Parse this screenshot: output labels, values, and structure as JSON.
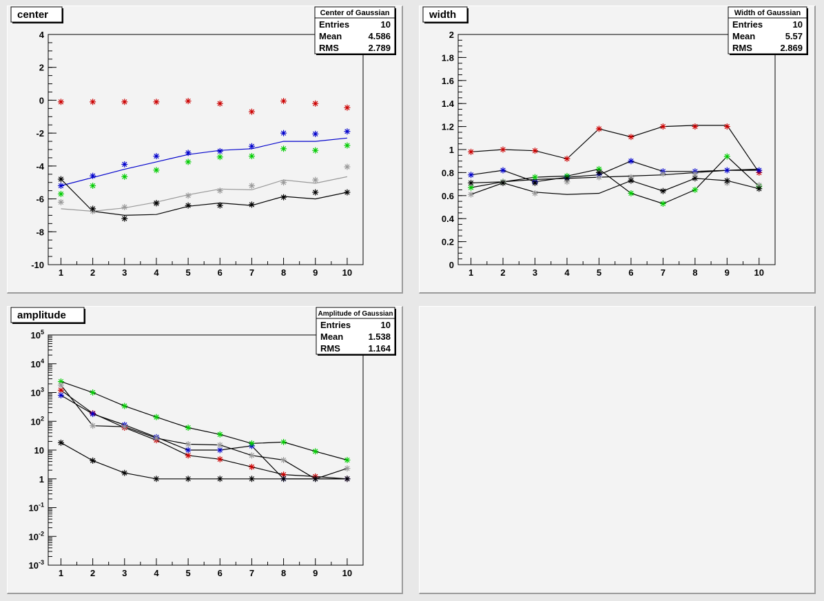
{
  "chart_data": [
    {
      "type": "scatter",
      "title": "center",
      "xlabel": "",
      "ylabel": "",
      "xlim": [
        0.6,
        10.5
      ],
      "ylim": [
        -10,
        4
      ],
      "x_ticks": [
        1,
        2,
        3,
        4,
        5,
        6,
        7,
        8,
        9,
        10
      ],
      "y_ticks": [
        4,
        2,
        0,
        -2,
        -4,
        -6,
        -8,
        -10
      ],
      "y_tick_labels": [
        "4",
        "2",
        "0",
        "-2",
        "-4",
        "-6",
        "-8",
        "-10"
      ],
      "log_y": false,
      "stats": {
        "name": "Center of Gaussian",
        "entries_label": "Entries",
        "entries": "10",
        "mean_label": "Mean",
        "mean": "4.586",
        "rms_label": "RMS",
        "rms": "2.789"
      },
      "series": [
        {
          "color": "#cc0000",
          "markers": [
            -0.1,
            -0.1,
            -0.1,
            -0.1,
            -0.05,
            -0.2,
            -0.7,
            -0.05,
            -0.2,
            -0.45
          ],
          "line": null
        },
        {
          "color": "#0000cc",
          "markers": [
            -5.2,
            -4.6,
            -3.9,
            -3.4,
            -3.2,
            -3.1,
            -2.8,
            -2.0,
            -2.05,
            -1.9
          ],
          "line": [
            -5.2,
            -4.7,
            -4.2,
            -3.75,
            -3.3,
            -3.05,
            -2.95,
            -2.5,
            -2.5,
            -2.3
          ]
        },
        {
          "color": "#00cc00",
          "markers": [
            -5.7,
            -5.2,
            -4.65,
            -4.25,
            -3.75,
            -3.45,
            -3.4,
            -2.95,
            -3.05,
            -2.75
          ],
          "line": null
        },
        {
          "color": "#999999",
          "markers": [
            -6.2,
            -6.75,
            -6.5,
            -6.3,
            -5.8,
            -5.5,
            -5.2,
            -5.0,
            -4.85,
            -4.05
          ],
          "line": [
            -6.6,
            -6.75,
            -6.55,
            -6.2,
            -5.75,
            -5.4,
            -5.45,
            -4.85,
            -5.05,
            -4.65
          ]
        },
        {
          "color": "#000000",
          "markers": [
            -4.8,
            -6.6,
            -7.2,
            -6.25,
            -6.4,
            -6.4,
            -6.35,
            -5.9,
            -5.6,
            -5.6
          ],
          "line": [
            -4.8,
            -6.75,
            -7.0,
            -6.95,
            -6.45,
            -6.25,
            -6.4,
            -5.85,
            -6.0,
            -5.6
          ]
        }
      ]
    },
    {
      "type": "scatter",
      "title": "width",
      "xlabel": "",
      "ylabel": "",
      "xlim": [
        0.6,
        10.5
      ],
      "ylim": [
        0,
        2
      ],
      "x_ticks": [
        1,
        2,
        3,
        4,
        5,
        6,
        7,
        8,
        9,
        10
      ],
      "y_ticks": [
        2,
        1.8,
        1.6,
        1.4,
        1.2,
        1,
        0.8,
        0.6,
        0.4,
        0.2,
        0
      ],
      "y_tick_labels": [
        "2",
        "1.8",
        "1.6",
        "1.4",
        "1.2",
        "1",
        "0.8",
        "0.6",
        "0.4",
        "0.2",
        "0"
      ],
      "log_y": false,
      "stats": {
        "name": "Width of Gaussian",
        "entries_label": "Entries",
        "entries": "10",
        "mean_label": "Mean",
        "mean": "5.57",
        "rms_label": "RMS",
        "rms": "2.869"
      },
      "series": [
        {
          "color": "#cc0000",
          "markers": [
            0.98,
            1.0,
            0.99,
            0.92,
            1.18,
            1.11,
            1.2,
            1.2,
            1.2,
            0.8
          ],
          "line": null
        },
        {
          "color": "#0000cc",
          "markers": [
            0.78,
            0.82,
            0.72,
            0.76,
            0.78,
            0.9,
            0.81,
            0.81,
            0.82,
            0.82
          ],
          "line": null
        },
        {
          "color": "#00cc00",
          "markers": [
            0.67,
            0.72,
            0.76,
            0.77,
            0.83,
            0.62,
            0.53,
            0.65,
            0.94,
            0.68
          ],
          "line": null
        },
        {
          "color": "#999999",
          "markers": [
            0.61,
            0.72,
            0.62,
            0.72,
            0.76,
            0.76,
            0.79,
            0.79,
            0.71,
            0.69
          ],
          "line": null
        },
        {
          "color": "#000000",
          "markers": [
            0.71,
            0.71,
            0.71,
            0.75,
            0.8,
            0.73,
            0.64,
            0.75,
            0.73,
            0.66
          ],
          "line": null
        }
      ],
      "lines": [
        {
          "color": "#000000",
          "values": [
            0.98,
            1.0,
            0.99,
            0.92,
            1.18,
            1.11,
            1.2,
            1.21,
            1.21,
            0.8
          ]
        },
        {
          "color": "#000000",
          "values": [
            0.78,
            0.82,
            0.72,
            0.76,
            0.78,
            0.9,
            0.81,
            0.81,
            0.82,
            0.82
          ]
        },
        {
          "color": "#000000",
          "values": [
            0.67,
            0.72,
            0.76,
            0.77,
            0.83,
            0.62,
            0.53,
            0.65,
            0.94,
            0.68
          ]
        },
        {
          "color": "#000000",
          "values": [
            0.61,
            0.71,
            0.63,
            0.61,
            0.62,
            0.73,
            0.64,
            0.75,
            0.73,
            0.66
          ]
        },
        {
          "color": "#000000",
          "values": [
            0.71,
            0.72,
            0.74,
            0.75,
            0.76,
            0.77,
            0.78,
            0.8,
            0.82,
            0.83
          ]
        }
      ]
    },
    {
      "type": "scatter",
      "title": "amplitude",
      "xlabel": "",
      "ylabel": "",
      "xlim": [
        0.6,
        10.5
      ],
      "ylim": [
        0.001,
        100000
      ],
      "x_ticks": [
        1,
        2,
        3,
        4,
        5,
        6,
        7,
        8,
        9,
        10
      ],
      "y_ticks": [
        100000,
        10000,
        1000,
        100,
        10,
        1,
        0.1,
        0.01,
        0.001
      ],
      "y_tick_labels": [
        {
          "base": "10",
          "exp": "5"
        },
        {
          "base": "10",
          "exp": "4"
        },
        {
          "base": "10",
          "exp": "3"
        },
        {
          "base": "10",
          "exp": "2"
        },
        {
          "base": "10",
          "exp": ""
        },
        {
          "base": "1",
          "exp": ""
        },
        {
          "base": "10",
          "exp": "-1"
        },
        {
          "base": "10",
          "exp": "-2"
        },
        {
          "base": "10",
          "exp": "-3"
        }
      ],
      "log_y": true,
      "stats": {
        "name": "Amplitude of Gaussian",
        "entries_label": "Entries",
        "entries": "10",
        "mean_label": "Mean",
        "mean": "1.538",
        "rms_label": "RMS",
        "rms": "1.164"
      },
      "series": [
        {
          "color": "#cc0000",
          "markers": [
            1200,
            190,
            60,
            22,
            6.5,
            4.8,
            2.6,
            1.4,
            1.2,
            1.0
          ],
          "line": null
        },
        {
          "color": "#0000cc",
          "markers": [
            800,
            180,
            75,
            28,
            10,
            10,
            14,
            1.0,
            1.0,
            1.0
          ],
          "line": null
        },
        {
          "color": "#00cc00",
          "markers": [
            2400,
            1000,
            340,
            140,
            60,
            35,
            17,
            19,
            9,
            4.5
          ],
          "line": null
        },
        {
          "color": "#999999",
          "markers": [
            1800,
            70,
            65,
            26,
            16,
            15,
            6.5,
            4.5,
            1.0,
            2.3
          ],
          "line": null
        },
        {
          "color": "#000000",
          "markers": [
            18,
            4.3,
            1.6,
            1.0,
            1.0,
            1.0,
            1.0,
            1.0,
            1.0,
            1.0
          ],
          "line": null
        }
      ],
      "lines": [
        {
          "color": "#000000",
          "values": [
            1200,
            190,
            60,
            22,
            6.5,
            4.8,
            2.6,
            1.4,
            1.2,
            1.0
          ]
        },
        {
          "color": "#000000",
          "values": [
            800,
            180,
            75,
            28,
            10,
            10,
            14,
            1.0,
            1.0,
            1.0
          ]
        },
        {
          "color": "#000000",
          "values": [
            2400,
            1000,
            340,
            140,
            60,
            35,
            17,
            19,
            9,
            4.5
          ]
        },
        {
          "color": "#000000",
          "values": [
            1800,
            70,
            65,
            26,
            16,
            15,
            6.5,
            4.5,
            1.0,
            2.3
          ]
        },
        {
          "color": "#000000",
          "values": [
            18,
            4.3,
            1.6,
            1.0,
            1.0,
            1.0,
            1.0,
            1.0,
            1.0,
            1.0
          ]
        }
      ]
    }
  ]
}
